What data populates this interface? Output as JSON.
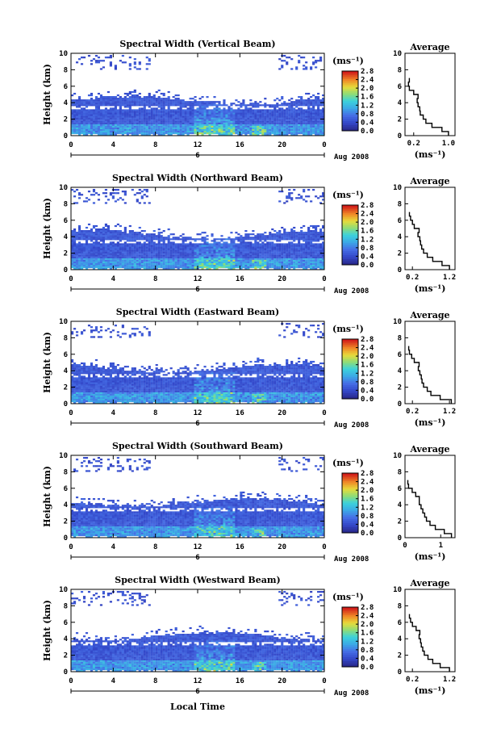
{
  "figure": {
    "xlabel": "Local Time",
    "date_label": "Aug 2008",
    "day_label": "6",
    "unit_label": "(ms⁻¹)",
    "average_title": "Average",
    "average_xlabel": "(ms⁻¹)",
    "ylabel": "Height (km)",
    "colorbar_ticks": [
      "0.0",
      "0.4",
      "0.8",
      "1.2",
      "1.6",
      "2.0",
      "2.4",
      "2.8"
    ],
    "colors": {
      "low": "#2b2d8c",
      "mid_low": "#4f6fe0",
      "mid": "#2fc4e6",
      "mid_high": "#e8d83a",
      "high": "#d62418"
    }
  },
  "chart_data": [
    {
      "type": "heatmap",
      "title": "Spectral Width (Vertical Beam)",
      "x_ticks": [
        "0",
        "4",
        "8",
        "12",
        "16",
        "20",
        "0"
      ],
      "xlim": [
        0,
        24
      ],
      "y_ticks": [
        "0",
        "2",
        "4",
        "6",
        "8",
        "10"
      ],
      "ylim": [
        0,
        10
      ],
      "colorbar_range": [
        0.0,
        2.8
      ],
      "average_profile": {
        "x_ticks": [
          "0.2",
          "1.0"
        ],
        "xlim": [
          0.0,
          1.15
        ],
        "heights": [
          0.0,
          0.5,
          1.0,
          1.5,
          2.0,
          2.5,
          3.0,
          3.5,
          4.0,
          4.5,
          5.0,
          5.5,
          6.0,
          6.5
        ],
        "values": [
          1.0,
          0.85,
          0.62,
          0.48,
          0.42,
          0.35,
          0.34,
          0.3,
          0.28,
          0.3,
          0.2,
          0.1,
          0.08,
          0.1
        ]
      }
    },
    {
      "type": "heatmap",
      "title": "Spectral Width (Northward Beam)",
      "x_ticks": [
        "0",
        "4",
        "8",
        "12",
        "16",
        "20",
        "0"
      ],
      "xlim": [
        0,
        24
      ],
      "y_ticks": [
        "0",
        "2",
        "4",
        "6",
        "8",
        "10"
      ],
      "ylim": [
        0,
        10
      ],
      "colorbar_range": [
        0.0,
        2.8
      ],
      "average_profile": {
        "x_ticks": [
          "0.2",
          "1.2"
        ],
        "xlim": [
          0.0,
          1.35
        ],
        "heights": [
          0.0,
          0.5,
          1.0,
          1.5,
          2.0,
          2.5,
          3.0,
          3.5,
          4.0,
          4.5,
          5.0,
          5.5,
          6.0,
          6.5
        ],
        "values": [
          1.2,
          1.0,
          0.75,
          0.6,
          0.5,
          0.45,
          0.42,
          0.4,
          0.35,
          0.38,
          0.25,
          0.2,
          0.15,
          0.12
        ]
      }
    },
    {
      "type": "heatmap",
      "title": "Spectral Width (Eastward Beam)",
      "x_ticks": [
        "0",
        "4",
        "8",
        "12",
        "16",
        "20",
        "0"
      ],
      "xlim": [
        0,
        24
      ],
      "y_ticks": [
        "0",
        "2",
        "4",
        "6",
        "8",
        "10"
      ],
      "ylim": [
        0,
        10
      ],
      "colorbar_range": [
        0.0,
        2.8
      ],
      "average_profile": {
        "x_ticks": [
          "0.2",
          "1.2"
        ],
        "xlim": [
          0.0,
          1.35
        ],
        "heights": [
          0.0,
          0.5,
          1.0,
          1.5,
          2.0,
          2.5,
          3.0,
          3.5,
          4.0,
          4.5,
          5.0,
          5.5,
          6.0,
          6.5
        ],
        "values": [
          1.25,
          0.95,
          0.7,
          0.6,
          0.5,
          0.46,
          0.44,
          0.4,
          0.36,
          0.38,
          0.25,
          0.18,
          0.12,
          0.1
        ]
      }
    },
    {
      "type": "heatmap",
      "title": "Spectral Width (Southward Beam)",
      "x_ticks": [
        "0",
        "4",
        "8",
        "12",
        "16",
        "20",
        "0"
      ],
      "xlim": [
        0,
        24
      ],
      "y_ticks": [
        "0",
        "2",
        "4",
        "6",
        "8",
        "10"
      ],
      "ylim": [
        0,
        10
      ],
      "colorbar_range": [
        0.0,
        2.8
      ],
      "average_profile": {
        "x_ticks": [
          "0",
          "1"
        ],
        "xlim": [
          0.0,
          1.4
        ],
        "heights": [
          0.0,
          0.5,
          1.0,
          1.5,
          2.0,
          2.5,
          3.0,
          3.5,
          4.0,
          4.5,
          5.0,
          5.5,
          6.0,
          6.5
        ],
        "values": [
          1.3,
          1.1,
          0.85,
          0.7,
          0.6,
          0.55,
          0.5,
          0.45,
          0.4,
          0.4,
          0.3,
          0.2,
          0.1,
          0.08
        ]
      }
    },
    {
      "type": "heatmap",
      "title": "Spectral Width (Westward Beam)",
      "x_ticks": [
        "0",
        "4",
        "8",
        "12",
        "16",
        "20",
        "0"
      ],
      "xlim": [
        0,
        24
      ],
      "y_ticks": [
        "0",
        "2",
        "4",
        "6",
        "8",
        "10"
      ],
      "ylim": [
        0,
        10
      ],
      "colorbar_range": [
        0.0,
        2.8
      ],
      "average_profile": {
        "x_ticks": [
          "0.2",
          "1.2"
        ],
        "xlim": [
          0.0,
          1.35
        ],
        "heights": [
          0.0,
          0.5,
          1.0,
          1.5,
          2.0,
          2.5,
          3.0,
          3.5,
          4.0,
          4.5,
          5.0,
          5.5,
          6.0,
          6.5
        ],
        "values": [
          1.2,
          0.95,
          0.75,
          0.62,
          0.52,
          0.48,
          0.44,
          0.42,
          0.38,
          0.4,
          0.3,
          0.2,
          0.15,
          0.12
        ]
      }
    }
  ]
}
